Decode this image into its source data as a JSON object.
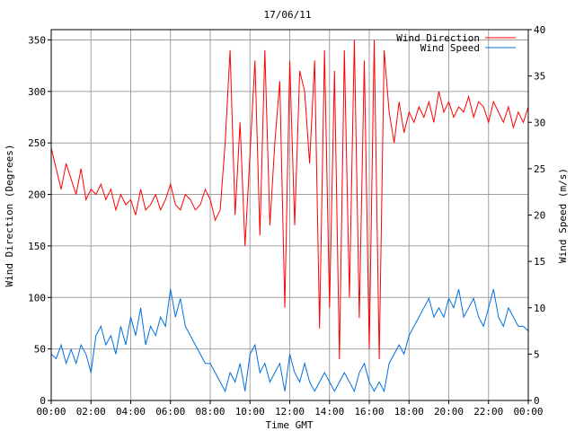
{
  "chart_data": {
    "type": "line",
    "title": "17/06/11",
    "xlabel": "Time GMT",
    "ylabel_left": "Wind Direction (Degrees)",
    "ylabel_right": "Wind Speed (m/s)",
    "x_range_hours": [
      0,
      24
    ],
    "x_ticks": [
      "00:00",
      "02:00",
      "04:00",
      "06:00",
      "08:00",
      "10:00",
      "12:00",
      "14:00",
      "16:00",
      "18:00",
      "20:00",
      "22:00",
      "00:00"
    ],
    "y_left_range": [
      0,
      360
    ],
    "y_left_ticks": [
      0,
      50,
      100,
      150,
      200,
      250,
      300,
      350
    ],
    "y_right_range": [
      0,
      40
    ],
    "y_right_ticks": [
      0,
      5,
      10,
      15,
      20,
      25,
      30,
      35,
      40
    ],
    "grid": true,
    "legend_position": "top-right",
    "series": [
      {
        "name": "Wind Direction",
        "axis": "left",
        "color": "#ff0000",
        "x_hours": [
          0,
          0.25,
          0.5,
          0.75,
          1,
          1.25,
          1.5,
          1.75,
          2,
          2.25,
          2.5,
          2.75,
          3,
          3.25,
          3.5,
          3.75,
          4,
          4.25,
          4.5,
          4.75,
          5,
          5.25,
          5.5,
          5.75,
          6,
          6.25,
          6.5,
          6.75,
          7,
          7.25,
          7.5,
          7.75,
          8,
          8.25,
          8.5,
          8.75,
          9,
          9.25,
          9.5,
          9.75,
          10,
          10.25,
          10.5,
          10.75,
          11,
          11.25,
          11.5,
          11.75,
          12,
          12.25,
          12.5,
          12.75,
          13,
          13.25,
          13.5,
          13.75,
          14,
          14.25,
          14.5,
          14.75,
          15,
          15.25,
          15.5,
          15.75,
          16,
          16.25,
          16.5,
          16.75,
          17,
          17.25,
          17.5,
          17.75,
          18,
          18.25,
          18.5,
          18.75,
          19,
          19.25,
          19.5,
          19.75,
          20,
          20.25,
          20.5,
          20.75,
          21,
          21.25,
          21.5,
          21.75,
          22,
          22.25,
          22.5,
          22.75,
          23,
          23.25,
          23.5,
          23.75,
          24
        ],
        "values": [
          245,
          225,
          205,
          230,
          215,
          200,
          225,
          195,
          205,
          200,
          210,
          195,
          205,
          185,
          200,
          190,
          195,
          180,
          205,
          185,
          190,
          200,
          185,
          195,
          210,
          190,
          185,
          200,
          195,
          185,
          190,
          205,
          195,
          175,
          185,
          250,
          340,
          180,
          270,
          150,
          240,
          330,
          160,
          340,
          170,
          250,
          310,
          90,
          330,
          170,
          320,
          300,
          230,
          330,
          70,
          340,
          90,
          320,
          40,
          340,
          100,
          350,
          80,
          330,
          50,
          350,
          40,
          340,
          280,
          250,
          290,
          260,
          280,
          270,
          285,
          275,
          290,
          270,
          300,
          280,
          290,
          275,
          285,
          280,
          295,
          275,
          290,
          285,
          270,
          290,
          280,
          270,
          285,
          265,
          280,
          270,
          285
        ]
      },
      {
        "name": "Wind Speed",
        "axis": "right",
        "color": "#0070e0",
        "x_hours": [
          0,
          0.25,
          0.5,
          0.75,
          1,
          1.25,
          1.5,
          1.75,
          2,
          2.25,
          2.5,
          2.75,
          3,
          3.25,
          3.5,
          3.75,
          4,
          4.25,
          4.5,
          4.75,
          5,
          5.25,
          5.5,
          5.75,
          6,
          6.25,
          6.5,
          6.75,
          7,
          7.25,
          7.5,
          7.75,
          8,
          8.25,
          8.5,
          8.75,
          9,
          9.25,
          9.5,
          9.75,
          10,
          10.25,
          10.5,
          10.75,
          11,
          11.25,
          11.5,
          11.75,
          12,
          12.25,
          12.5,
          12.75,
          13,
          13.25,
          13.5,
          13.75,
          14,
          14.25,
          14.5,
          14.75,
          15,
          15.25,
          15.5,
          15.75,
          16,
          16.25,
          16.5,
          16.75,
          17,
          17.25,
          17.5,
          17.75,
          18,
          18.25,
          18.5,
          18.75,
          19,
          19.25,
          19.5,
          19.75,
          20,
          20.25,
          20.5,
          20.75,
          21,
          21.25,
          21.5,
          21.75,
          22,
          22.25,
          22.5,
          22.75,
          23,
          23.25,
          23.5,
          23.75,
          24
        ],
        "values": [
          5,
          4.5,
          6,
          4,
          5.5,
          4,
          6,
          5,
          3,
          7,
          8,
          6,
          7,
          5,
          8,
          6,
          9,
          7,
          10,
          6,
          8,
          7,
          9,
          8,
          12,
          9,
          11,
          8,
          7,
          6,
          5,
          4,
          4,
          3,
          2,
          1,
          3,
          2,
          4,
          1,
          5,
          6,
          3,
          4,
          2,
          3,
          4,
          1,
          5,
          3,
          2,
          4,
          2,
          1,
          2,
          3,
          2,
          1,
          2,
          3,
          2,
          1,
          3,
          4,
          2,
          1,
          2,
          1,
          4,
          5,
          6,
          5,
          7,
          8,
          9,
          10,
          11,
          9,
          10,
          9,
          11,
          10,
          12,
          9,
          10,
          11,
          9,
          8,
          10,
          12,
          9,
          8,
          10,
          9,
          8,
          8,
          7.5
        ]
      }
    ]
  }
}
